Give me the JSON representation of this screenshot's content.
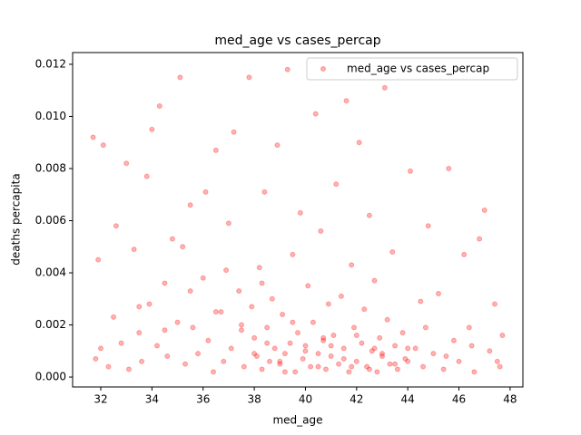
{
  "chart_data": {
    "type": "scatter",
    "title": "med_age vs cases_percap",
    "xlabel": "med_age",
    "ylabel": "deaths percapita",
    "xlim": [
      30.9,
      48.5
    ],
    "ylim": [
      -0.00038,
      0.01245
    ],
    "xticks": [
      32,
      34,
      36,
      38,
      40,
      42,
      44,
      46,
      48
    ],
    "yticks": [
      {
        "value": 0,
        "label": "0.000"
      },
      {
        "value": 0.002,
        "label": "0.002"
      },
      {
        "value": 0.004,
        "label": "0.004"
      },
      {
        "value": 0.006,
        "label": "0.006"
      },
      {
        "value": 0.008,
        "label": "0.008"
      },
      {
        "value": 0.01,
        "label": "0.010"
      },
      {
        "value": 0.012,
        "label": "0.012"
      }
    ],
    "legend": "upper right",
    "series": [
      {
        "name": "med_age vs cases_percap",
        "color": "#ff0000",
        "x": [
          31.7,
          31.8,
          31.9,
          32.0,
          32.1,
          32.3,
          32.5,
          32.6,
          32.8,
          33.0,
          33.1,
          33.3,
          33.5,
          33.6,
          33.8,
          33.9,
          34.0,
          34.2,
          34.3,
          34.5,
          34.6,
          34.8,
          35.0,
          35.1,
          35.3,
          35.5,
          35.6,
          35.8,
          36.0,
          36.1,
          36.2,
          36.4,
          36.5,
          36.7,
          36.8,
          37.0,
          37.1,
          37.2,
          37.4,
          37.5,
          37.6,
          37.8,
          37.9,
          38.0,
          38.1,
          38.2,
          38.3,
          38.4,
          38.5,
          38.6,
          38.7,
          38.8,
          38.9,
          39.0,
          39.1,
          39.2,
          39.3,
          39.4,
          39.5,
          39.6,
          39.7,
          39.8,
          39.9,
          40.0,
          40.1,
          40.2,
          40.3,
          40.4,
          40.5,
          40.6,
          40.7,
          40.8,
          40.9,
          41.0,
          41.1,
          41.2,
          41.3,
          41.4,
          41.5,
          41.6,
          41.7,
          41.8,
          41.9,
          42.0,
          42.1,
          42.2,
          42.3,
          42.4,
          42.5,
          42.6,
          42.7,
          42.8,
          42.9,
          43.0,
          43.1,
          43.2,
          43.3,
          43.4,
          43.5,
          43.6,
          43.8,
          44.0,
          44.1,
          44.3,
          44.5,
          44.6,
          44.8,
          45.0,
          45.2,
          45.4,
          45.6,
          45.8,
          46.0,
          46.2,
          46.4,
          46.6,
          46.8,
          47.0,
          47.2,
          47.4,
          47.6,
          47.7,
          38.0,
          38.5,
          39.0,
          39.5,
          40.0,
          40.5,
          41.0,
          41.5,
          42.0,
          42.5,
          43.0,
          43.5,
          44.0,
          37.5,
          36.5,
          35.5,
          34.5,
          33.5,
          45.5,
          46.5,
          47.5,
          39.2,
          40.7,
          41.8,
          38.3,
          42.7,
          43.9,
          44.7,
          36.9,
          35.2
        ],
        "values": [
          0.0092,
          0.0007,
          0.0045,
          0.0011,
          0.0089,
          0.0004,
          0.0023,
          0.0058,
          0.0013,
          0.0082,
          0.0003,
          0.0049,
          0.0017,
          0.0006,
          0.0077,
          0.0028,
          0.0095,
          0.0012,
          0.0104,
          0.0036,
          0.0008,
          0.0053,
          0.0021,
          0.0115,
          0.0005,
          0.0066,
          0.0019,
          0.0009,
          0.0038,
          0.0071,
          0.0014,
          0.0002,
          0.0087,
          0.0025,
          0.0006,
          0.0059,
          0.0011,
          0.0094,
          0.0033,
          0.0018,
          0.0004,
          0.0115,
          0.0027,
          0.0015,
          0.0008,
          0.0042,
          0.0003,
          0.0071,
          0.0019,
          0.0006,
          0.003,
          0.0011,
          0.0089,
          0.0005,
          0.0024,
          0.0009,
          0.0118,
          0.0013,
          0.0047,
          0.0002,
          0.0017,
          0.0063,
          0.0007,
          0.0012,
          0.0035,
          0.0004,
          0.0021,
          0.0101,
          0.0009,
          0.0056,
          0.0014,
          0.0003,
          0.0028,
          0.0008,
          0.0016,
          0.0074,
          0.0005,
          0.0031,
          0.0011,
          0.0106,
          0.0002,
          0.0043,
          0.0019,
          0.0006,
          0.009,
          0.0013,
          0.0026,
          0.0004,
          0.0062,
          0.001,
          0.0037,
          0.0002,
          0.0015,
          0.0008,
          0.0111,
          0.0022,
          0.0005,
          0.0048,
          0.0012,
          0.0003,
          0.0017,
          0.0006,
          0.0079,
          0.0011,
          0.0029,
          0.0004,
          0.0058,
          0.0009,
          0.0032,
          0.0003,
          0.008,
          0.0014,
          0.0006,
          0.0047,
          0.0019,
          0.0002,
          0.0053,
          0.0064,
          0.001,
          0.0028,
          0.0004,
          0.0016,
          0.0009,
          0.0013,
          0.0006,
          0.0021,
          0.001,
          0.0004,
          0.0012,
          0.0007,
          0.0016,
          0.0003,
          0.0009,
          0.0005,
          0.0011,
          0.002,
          0.0025,
          0.0033,
          0.0018,
          0.0027,
          0.0008,
          0.0012,
          0.0006,
          0.0002,
          0.0015,
          0.0004,
          0.0036,
          0.0011,
          0.0007,
          0.0019,
          0.0041,
          0.005
        ]
      }
    ]
  }
}
